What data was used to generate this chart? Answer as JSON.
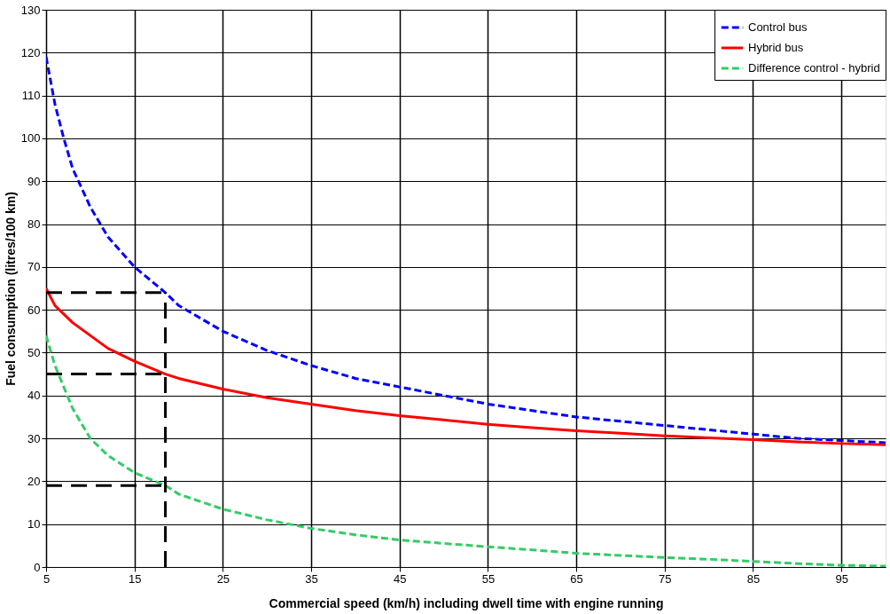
{
  "chart_data": {
    "type": "line",
    "xlabel": "Commercial speed (km/h) including dwell time with engine running",
    "ylabel": "Fuel consumption (litres/100 km)",
    "xlim": [
      5,
      100
    ],
    "xticks": [
      5,
      15,
      25,
      35,
      45,
      55,
      65,
      75,
      85,
      95
    ],
    "ylim": [
      0,
      130
    ],
    "yticks": [
      0,
      10,
      20,
      30,
      40,
      50,
      60,
      70,
      80,
      90,
      100,
      110,
      120,
      130
    ],
    "grid": true,
    "legend": "top right",
    "marker": "none",
    "series": [
      {
        "name": "Control bus",
        "color": "#0000ff",
        "line_style": "dashed",
        "x": [
          5,
          6,
          7,
          8,
          10,
          12,
          15,
          18.5,
          20,
          25,
          30,
          35,
          40,
          45,
          50,
          55,
          60,
          65,
          70,
          75,
          80,
          85,
          90,
          95,
          100
        ],
        "values": [
          119,
          108,
          100,
          93,
          84,
          77,
          70,
          64,
          61,
          55,
          50.5,
          47,
          44,
          42,
          40,
          38,
          36.5,
          35,
          34,
          33,
          32,
          31,
          30,
          29.5,
          29
        ]
      },
      {
        "name": "Hybrid bus",
        "color": "#ff0000",
        "line_style": "solid",
        "x": [
          5,
          6,
          8,
          10,
          12,
          15,
          18.5,
          20,
          25,
          30,
          35,
          40,
          45,
          50,
          55,
          60,
          65,
          70,
          75,
          80,
          85,
          90,
          95,
          100
        ],
        "values": [
          65,
          61,
          57,
          54,
          51,
          48,
          45,
          44,
          41.5,
          39.5,
          38,
          36.5,
          35.3,
          34.3,
          33.3,
          32.5,
          31.8,
          31.2,
          30.6,
          30.1,
          29.7,
          29.2,
          28.8,
          28.5
        ]
      },
      {
        "name": "Difference control - hybrid",
        "color": "#33cc66",
        "line_style": "dashed",
        "x": [
          5,
          6,
          7,
          8,
          10,
          12,
          15,
          18.5,
          20,
          25,
          30,
          35,
          40,
          45,
          50,
          55,
          60,
          65,
          70,
          75,
          80,
          85,
          90,
          95,
          100
        ],
        "values": [
          54,
          47,
          42,
          37,
          30,
          26,
          22,
          19,
          17,
          13.5,
          11,
          9,
          7.5,
          6.3,
          5.5,
          4.7,
          4,
          3.2,
          2.7,
          2.2,
          1.8,
          1.3,
          0.8,
          0.4,
          0.2
        ]
      }
    ],
    "ref_lines": [
      {
        "axis": "x",
        "value": 18.5,
        "color": "#000000",
        "line_style": "dashed"
      },
      {
        "axis": "y",
        "value": 64,
        "color": "#000000",
        "line_style": "dashed"
      },
      {
        "axis": "y",
        "value": 45,
        "color": "#000000",
        "line_style": "dashed"
      },
      {
        "axis": "y",
        "value": 19,
        "color": "#000000",
        "line_style": "dashed"
      }
    ]
  }
}
